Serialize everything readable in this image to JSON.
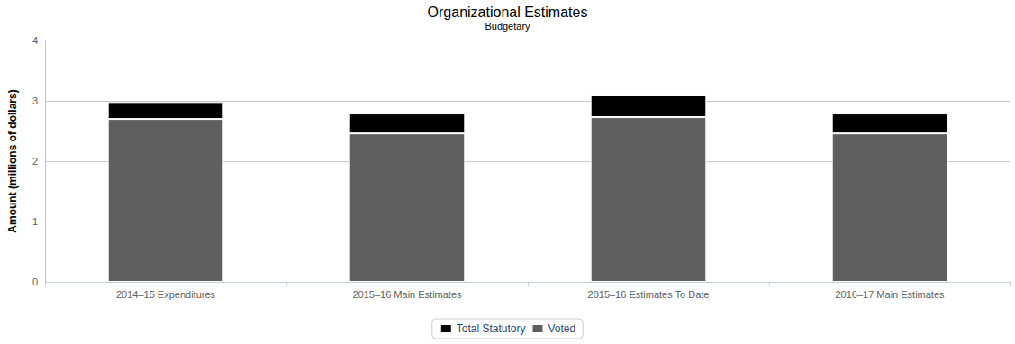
{
  "chart_data": {
    "type": "bar",
    "title": "Organizational Estimates",
    "subtitle": "Budgetary",
    "y_label": "Amount (millions of dollars)",
    "categories": [
      "2014–15 Expenditures",
      "2015–16 Main Estimates",
      "2015–16 Estimates To Date",
      "2016–17 Main Estimates"
    ],
    "series": [
      {
        "name": "Total Statutory",
        "color": "#000000",
        "values": [
          0.28,
          0.33,
          0.36,
          0.33
        ]
      },
      {
        "name": "Voted",
        "color": "#5f5f5f",
        "values": [
          2.7,
          2.46,
          2.73,
          2.46
        ]
      }
    ],
    "stacked": true,
    "ylim": [
      0,
      4
    ],
    "yticks": [
      0,
      1,
      2,
      3,
      4
    ],
    "grid": true,
    "legend": "bottom"
  }
}
